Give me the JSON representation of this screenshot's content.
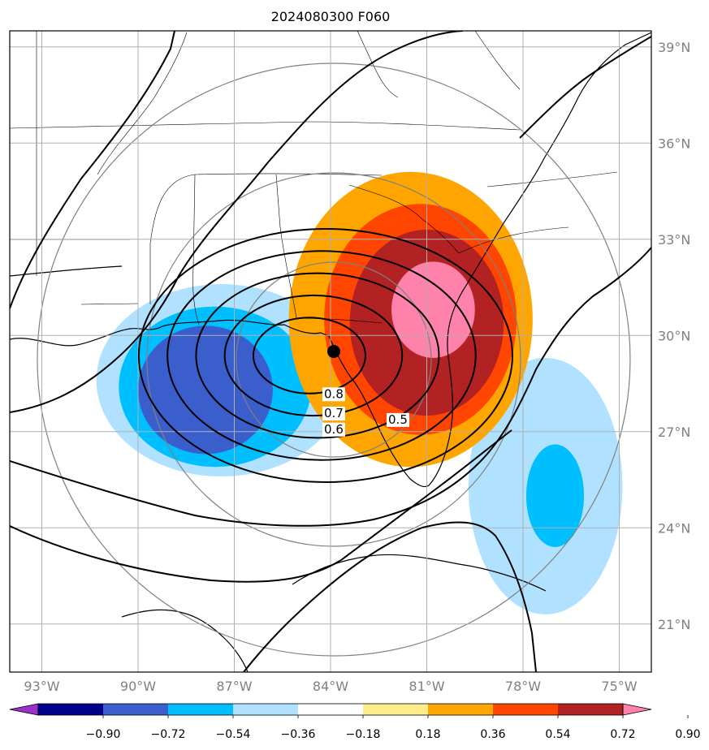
{
  "chart_data": {
    "type": "heatmap",
    "title": "2024080300 F060",
    "lon_ticks": [
      "93°W",
      "90°W",
      "87°W",
      "84°W",
      "81°W",
      "78°W",
      "75°W"
    ],
    "lon_values": [
      -93,
      -90,
      -87,
      -84,
      -81,
      -78,
      -75
    ],
    "lat_ticks": [
      "39°N",
      "36°N",
      "33°N",
      "30°N",
      "27°N",
      "24°N",
      "21°N"
    ],
    "lat_values": [
      39,
      36,
      33,
      30,
      27,
      24,
      21
    ],
    "xlim": [
      -94,
      -74
    ],
    "ylim": [
      19.5,
      39.5
    ],
    "colorbar": {
      "levels": [
        -0.9,
        -0.72,
        -0.54,
        -0.36,
        -0.18,
        0.18,
        0.36,
        0.54,
        0.72,
        0.9
      ],
      "tick_labels": [
        "−0.90",
        "−0.72",
        "−0.54",
        "−0.36",
        "−0.18",
        "0.18",
        "0.36",
        "0.54",
        "0.72",
        "0.90"
      ],
      "colors": [
        "#9932cc",
        "#00008b",
        "#3a5fcd",
        "#00bfff",
        "#b0e2ff",
        "#ffffff",
        "#ffec8b",
        "#ffa500",
        "#ff4500",
        "#b22222",
        "#ff82ab"
      ],
      "extend": "both"
    },
    "center_marker": {
      "lon": -83.9,
      "lat": 29.5
    },
    "contour_labels": [
      {
        "text": "0.8",
        "lon": -83.9,
        "lat": 28.1
      },
      {
        "text": "0.7",
        "lon": -83.9,
        "lat": 27.5
      },
      {
        "text": "0.6",
        "lon": -83.9,
        "lat": 27.0
      },
      {
        "text": "0.5",
        "lon": -81.9,
        "lat": 27.3
      }
    ],
    "positive_lobes": [
      {
        "lon": -81.5,
        "lat": 30.5,
        "rx": 3.8,
        "ry": 4.6,
        "value": 0.36
      },
      {
        "lon": -81.2,
        "lat": 30.5,
        "rx": 3.0,
        "ry": 3.6,
        "value": 0.54
      },
      {
        "lon": -81.0,
        "lat": 30.4,
        "rx": 2.4,
        "ry": 2.9,
        "value": 0.72
      },
      {
        "lon": -80.8,
        "lat": 30.8,
        "rx": 1.3,
        "ry": 1.5,
        "value": 0.9
      }
    ],
    "negative_lobes": [
      {
        "lon": -87.2,
        "lat": 28.8,
        "rx": 4.8,
        "ry": 3.6,
        "value": -0.18
      },
      {
        "lon": -87.4,
        "lat": 28.6,
        "rx": 3.9,
        "ry": 3.0,
        "value": -0.36
      },
      {
        "lon": -87.6,
        "lat": 28.4,
        "rx": 3.0,
        "ry": 2.5,
        "value": -0.54
      },
      {
        "lon": -87.9,
        "lat": 28.3,
        "rx": 2.1,
        "ry": 2.0,
        "value": -0.72
      },
      {
        "lon": -77.3,
        "lat": 25.5,
        "rx": 3.2,
        "ry": 4.8,
        "value": -0.18
      },
      {
        "lon": -77.3,
        "lat": 25.3,
        "rx": 2.4,
        "ry": 4.0,
        "value": -0.36
      },
      {
        "lon": -77.0,
        "lat": 25.0,
        "rx": 0.9,
        "ry": 1.6,
        "value": -0.54
      }
    ]
  }
}
